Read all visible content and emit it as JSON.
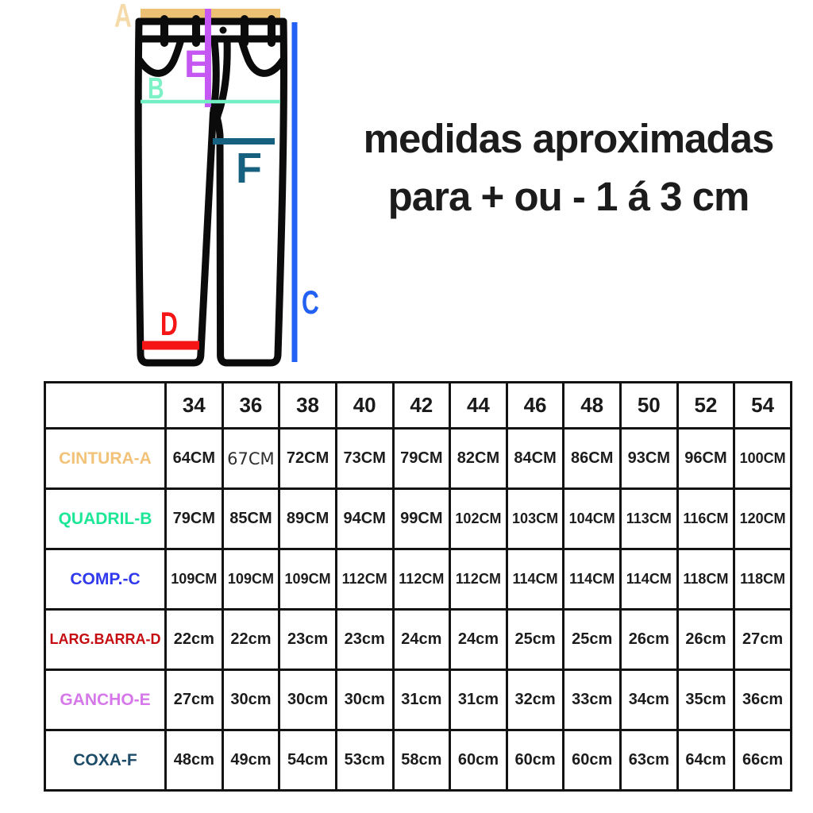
{
  "title": {
    "line1": "medidas aproximadas",
    "line2": "para + ou - 1 á 3 cm"
  },
  "diagram": {
    "letters": {
      "a": "A",
      "b": "B",
      "c": "C",
      "d": "D",
      "e": "E",
      "f": "F"
    },
    "colors": {
      "letter_a": "#f6dbaa",
      "waistband_bar": "#edc173",
      "letter_b": "#7df2c7",
      "hip_line": "#72f0c3",
      "letter_c": "#2361f5",
      "length_line": "#2361f5",
      "letter_d": "#f51515",
      "hem_bar": "#f51515",
      "letter_e": "#c558f2",
      "rise_line": "#c558f2",
      "letter_f": "#176180",
      "thigh_line": "#176180",
      "outline": "#0b0b0b"
    }
  },
  "table": {
    "sizes": [
      "34",
      "36",
      "38",
      "40",
      "42",
      "44",
      "46",
      "48",
      "50",
      "52",
      "54"
    ],
    "rows": [
      {
        "label": "CINTURA-A",
        "color": "#f2c279",
        "values": [
          "64CM",
          "67CM",
          "72CM",
          "73CM",
          "79CM",
          "82CM",
          "84CM",
          "86CM",
          "93CM",
          "96CM",
          "100CM"
        ],
        "light_cells": [
          1
        ]
      },
      {
        "label": "QUADRIL-B",
        "color": "#1ce797",
        "values": [
          "79CM",
          "85CM",
          "89CM",
          "94CM",
          "99CM",
          "102CM",
          "103CM",
          "104CM",
          "113CM",
          "116CM",
          "120CM"
        ]
      },
      {
        "label": "COMP.-C",
        "color": "#3139ee",
        "values": [
          "109CM",
          "109CM",
          "109CM",
          "112CM",
          "112CM",
          "112CM",
          "114CM",
          "114CM",
          "114CM",
          "118CM",
          "118CM"
        ]
      },
      {
        "label": "LARG.BARRA-D",
        "color": "#c50d11",
        "values": [
          "22cm",
          "22cm",
          "23cm",
          "23cm",
          "24cm",
          "24cm",
          "25cm",
          "25cm",
          "26cm",
          "26cm",
          "27cm"
        ]
      },
      {
        "label": "GANCHO-E",
        "color": "#d678ea",
        "values": [
          "27cm",
          "30cm",
          "30cm",
          "30cm",
          "31cm",
          "31cm",
          "32cm",
          "33cm",
          "34cm",
          "35cm",
          "36cm"
        ]
      },
      {
        "label": "COXA-F",
        "color": "#1d4c68",
        "values": [
          "48cm",
          "49cm",
          "54cm",
          "53cm",
          "58cm",
          "60cm",
          "60cm",
          "60cm",
          "63cm",
          "64cm",
          "66cm"
        ]
      }
    ]
  }
}
